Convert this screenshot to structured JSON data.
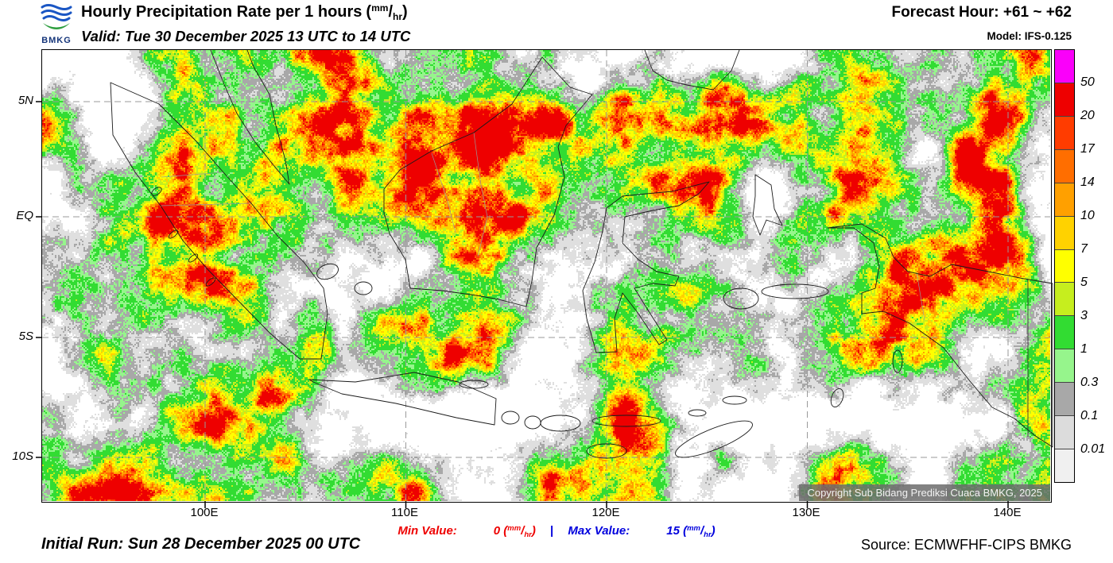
{
  "header": {
    "logo_text": "BMKG",
    "title": "Hourly Precipitation Rate per 1 hours",
    "valid": "Valid: Tue 30 December 2025 13 UTC to 14 UTC",
    "forecast_hour": "Forecast Hour: +61 ~ +62",
    "model": "Model: IFS-0.125"
  },
  "units": {
    "open": "(",
    "num": "mm",
    "slash": "/",
    "den": "hr",
    "close": ")"
  },
  "map": {
    "lat_labels": [
      "5N",
      "EQ",
      "5S",
      "10S"
    ],
    "lon_labels": [
      "100E",
      "110E",
      "120E",
      "130E",
      "140E"
    ],
    "copyright": "Copyright Sub Bidang Prediksi Cuaca BMKG, 2025"
  },
  "legend": {
    "labels": [
      "50",
      "20",
      "17",
      "14",
      "10",
      "7",
      "5",
      "3",
      "1",
      "0.3",
      "0.1",
      "0.01"
    ],
    "colors": [
      "#FA00FA",
      "#EE0000",
      "#FF3C00",
      "#FF6E00",
      "#FFA000",
      "#FFD200",
      "#FFFF00",
      "#C6EE1E",
      "#32DC32",
      "#96F58C",
      "#A8A8A8",
      "#DCDCDC",
      "#F0F0F0"
    ]
  },
  "footer": {
    "initial_run": "Initial Run: Sun 28 December 2025 00 UTC",
    "min_label": "Min Value:",
    "min_value": "0",
    "separator": "|",
    "max_label": "Max Value:",
    "max_value": "15",
    "min_color": "#EE0000",
    "max_color": "#0000DD",
    "source": "Source: ECMWFHF-CIPS BMKG"
  }
}
